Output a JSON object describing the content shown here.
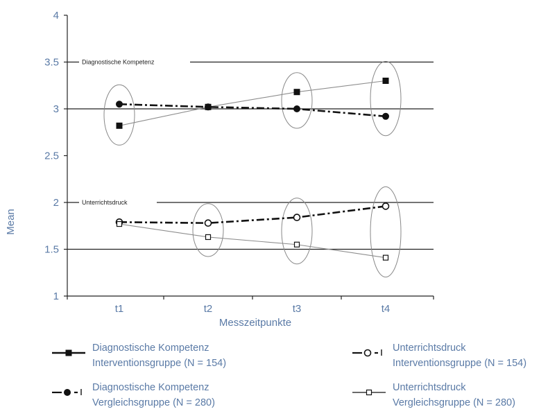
{
  "chart_data": {
    "type": "line",
    "categories": [
      "t1",
      "t2",
      "t3",
      "t4"
    ],
    "xlabel": "Messzeitpunkte",
    "ylabel": "Mean",
    "ylim": [
      1,
      4
    ],
    "yticks": [
      "1",
      "1.5",
      "2",
      "2.5",
      "3",
      "3.5",
      "4"
    ],
    "grid_lines": [
      1.5,
      2,
      3,
      3.5
    ],
    "band_labels": [
      {
        "text": "Diagnostische Kompetenz",
        "y": 3.5
      },
      {
        "text": "Unterrichtsdruck",
        "y": 2
      }
    ],
    "series": [
      {
        "name_line1": "Diagnostische Kompetenz",
        "name_line2": "Interventionsgruppe (N = 154)",
        "values": [
          2.82,
          3.02,
          3.18,
          3.3
        ],
        "marker": "filled-square",
        "line": "solid-thin",
        "color": "#111111"
      },
      {
        "name_line1": "Diagnostische Kompetenz",
        "name_line2": "Vergleichsgruppe (N = 280)",
        "values": [
          3.05,
          3.02,
          3.0,
          2.92
        ],
        "marker": "filled-circle",
        "line": "dash-dot",
        "color": "#111111"
      },
      {
        "name_line1": "Unterrichtsdruck",
        "name_line2": "Interventionsgruppe (N = 154)",
        "values": [
          1.79,
          1.78,
          1.84,
          1.96
        ],
        "marker": "open-circle",
        "line": "dash-dot",
        "color": "#111111"
      },
      {
        "name_line1": "Unterrichtsdruck",
        "name_line2": "Vergleichsgruppe (N = 280)",
        "values": [
          1.77,
          1.63,
          1.55,
          1.41
        ],
        "marker": "open-square",
        "line": "solid-thin",
        "color": "#111111"
      }
    ],
    "highlights": [
      {
        "category": "t1",
        "group": "Diagnostische Kompetenz"
      },
      {
        "category": "t3",
        "group": "Diagnostische Kompetenz"
      },
      {
        "category": "t4",
        "group": "Diagnostische Kompetenz"
      },
      {
        "category": "t2",
        "group": "Unterrichtsdruck"
      },
      {
        "category": "t3",
        "group": "Unterrichtsdruck"
      },
      {
        "category": "t4",
        "group": "Unterrichtsdruck"
      }
    ]
  }
}
